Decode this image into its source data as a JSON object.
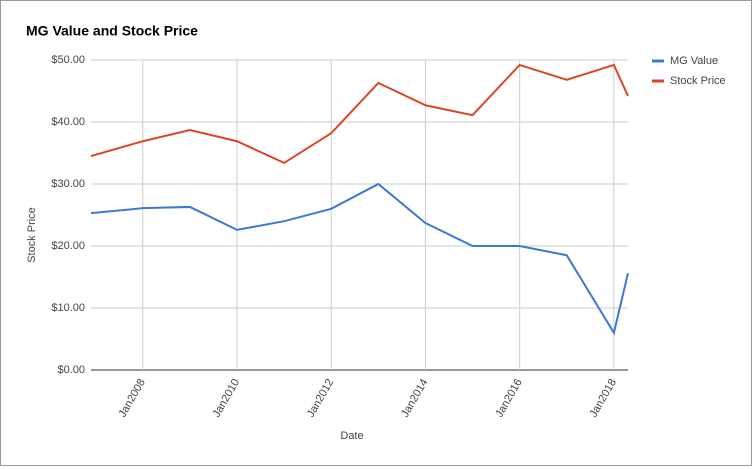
{
  "chart_data": {
    "type": "line",
    "title": "MG Value and Stock Price",
    "x_label": "Date",
    "y_label": "Stock Price",
    "x": [
      2006.9,
      2008,
      2009,
      2010,
      2011,
      2012,
      2013,
      2014,
      2015,
      2016,
      2017,
      2018,
      2018.3
    ],
    "xlim": [
      2006.9,
      2018.3
    ],
    "xticks": [
      {
        "value": 2008,
        "label": "Jan2008"
      },
      {
        "value": 2010,
        "label": "Jan2010"
      },
      {
        "value": 2012,
        "label": "Jan2012"
      },
      {
        "value": 2014,
        "label": "Jan2014"
      },
      {
        "value": 2016,
        "label": "Jan2016"
      },
      {
        "value": 2018,
        "label": "Jan2018"
      }
    ],
    "ylim": [
      0,
      50
    ],
    "yticks": [
      {
        "value": 0,
        "label": "$0.00"
      },
      {
        "value": 10,
        "label": "$10.00"
      },
      {
        "value": 20,
        "label": "$20.00"
      },
      {
        "value": 30,
        "label": "$30.00"
      },
      {
        "value": 40,
        "label": "$40.00"
      },
      {
        "value": 50,
        "label": "$50.00"
      }
    ],
    "grid": true,
    "legend": "right",
    "series": [
      {
        "name": "MG Value",
        "color": "#3c78d8",
        "values": [
          25.3,
          26.1,
          26.3,
          22.6,
          24.0,
          26.0,
          30.0,
          23.7,
          20.0,
          20.0,
          18.5,
          6.0,
          15.6
        ]
      },
      {
        "name": "Stock Price",
        "color": "#dc4424",
        "values": [
          34.5,
          36.9,
          38.7,
          36.9,
          33.4,
          38.2,
          46.3,
          42.7,
          41.1,
          49.2,
          46.8,
          49.2,
          44.2
        ]
      }
    ]
  }
}
